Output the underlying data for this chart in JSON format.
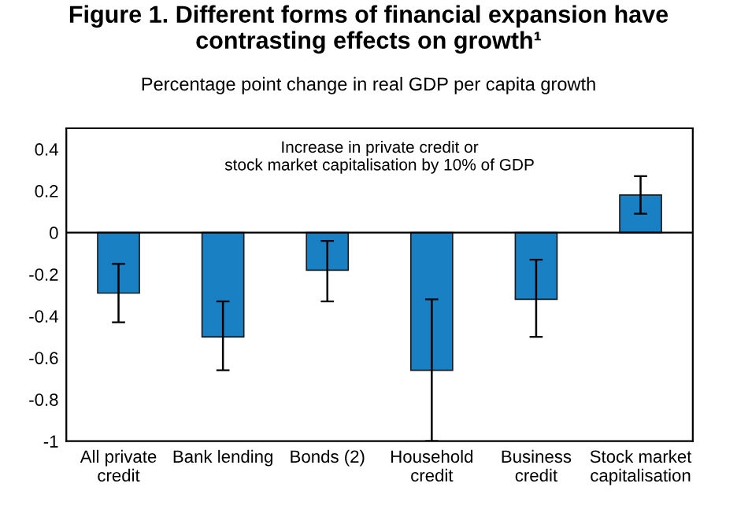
{
  "chart_data": {
    "type": "bar",
    "title": "Figure 1. Different forms of financial expansion have contrasting effects on growth¹",
    "subtitle": "Percentage point change in real GDP per capita growth",
    "annotations": [
      "Increase in private credit or\nstock market capitalisation by 10% of GDP"
    ],
    "categories": [
      "All private\ncredit",
      "Bank lending",
      "Bonds (2)",
      "Household\ncredit",
      "Business\ncredit",
      "Stock market\ncapitalisation"
    ],
    "values": [
      -0.29,
      -0.5,
      -0.18,
      -0.66,
      -0.32,
      0.18
    ],
    "errors": [
      [
        -0.43,
        -0.15
      ],
      [
        -0.66,
        -0.33
      ],
      [
        -0.33,
        -0.04
      ],
      [
        -1.0,
        -0.32
      ],
      [
        -0.5,
        -0.13
      ],
      [
        0.09,
        0.27
      ]
    ],
    "color": "#1a80c4",
    "ylim": [
      -1,
      0.5
    ],
    "yticks": [
      {
        "value": -1,
        "label": "-1"
      },
      {
        "value": -0.8,
        "label": "-0.8"
      },
      {
        "value": -0.6,
        "label": "-0.6"
      },
      {
        "value": -0.4,
        "label": "-0.4"
      },
      {
        "value": -0.2,
        "label": "-0.2"
      },
      0,
      0.2,
      0.4
    ],
    "legend": false
  }
}
